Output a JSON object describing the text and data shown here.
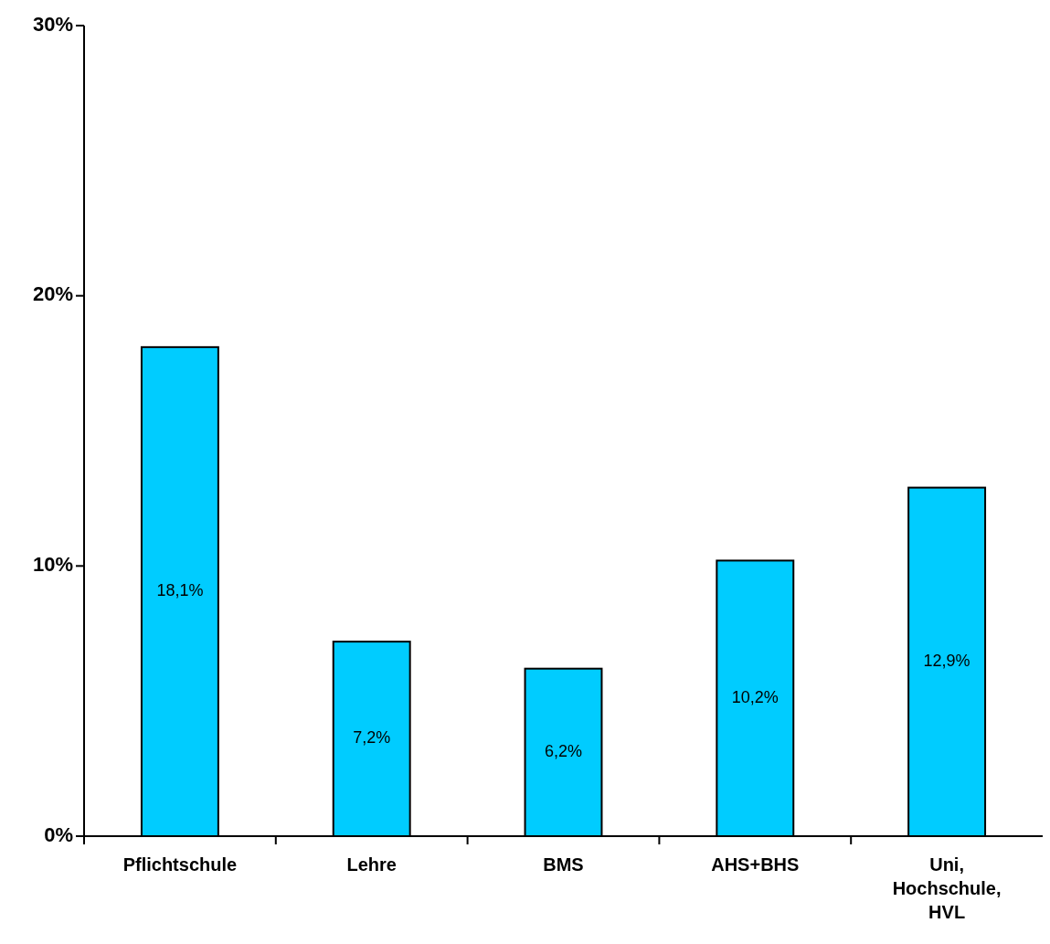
{
  "chart_data": {
    "type": "bar",
    "categories": [
      "Pflichtschule",
      "Lehre",
      "BMS",
      "AHS+BHS",
      "Uni, Hochschule, HVL"
    ],
    "values": [
      18.1,
      7.2,
      6.2,
      10.2,
      12.9
    ],
    "value_labels": [
      "18,1%",
      "7,2%",
      "6,2%",
      "10,2%",
      "12,9%"
    ],
    "color": "#00ccff",
    "ylim": [
      0,
      30
    ],
    "yticks": [
      {
        "value": 0,
        "label": "0%"
      },
      {
        "value": 10,
        "label": "10%"
      },
      {
        "value": 20,
        "label": "20%"
      },
      {
        "value": 30,
        "label": "30%"
      }
    ],
    "grid": false
  }
}
